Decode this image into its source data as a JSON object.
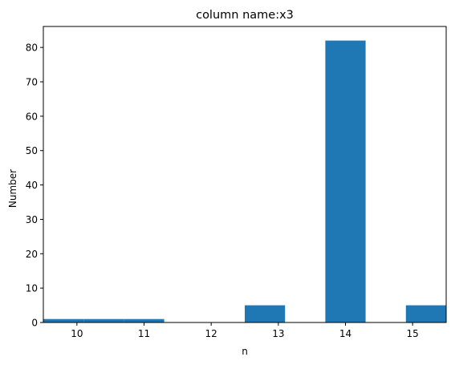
{
  "chart_data": {
    "type": "bar",
    "title": "column name:x3",
    "xlabel": "n",
    "ylabel": "Number",
    "bin_edges": [
      9.5,
      10.1,
      10.7,
      11.3,
      11.9,
      12.5,
      13.1,
      13.7,
      14.3,
      14.9,
      15.5
    ],
    "values": [
      1,
      1,
      1,
      0,
      0,
      5,
      0,
      82,
      0,
      5
    ],
    "xticks": [
      "10",
      "11",
      "12",
      "13",
      "14",
      "15"
    ],
    "yticks": [
      "0",
      "10",
      "20",
      "30",
      "40",
      "50",
      "60",
      "70",
      "80"
    ],
    "xlim": [
      9.5,
      15.5
    ],
    "ylim": [
      0,
      86.1
    ],
    "grid": false,
    "bar_color": "#1f77b4"
  }
}
